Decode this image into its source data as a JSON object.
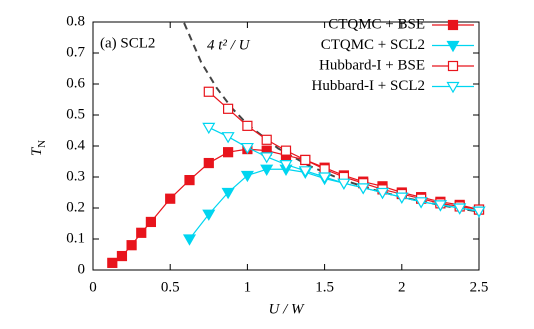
{
  "chart_data": {
    "type": "line",
    "panel_label": "(a) SCL2",
    "x_label": "U / W",
    "y_label": {
      "main": "T",
      "sub": "N"
    },
    "xlim": [
      0,
      2.5
    ],
    "ylim": [
      0,
      0.8
    ],
    "xticks": [
      0,
      0.5,
      1,
      1.5,
      2,
      2.5
    ],
    "yticks": [
      0,
      0.1,
      0.2,
      0.3,
      0.4,
      0.5,
      0.6,
      0.7,
      0.8
    ],
    "legend": "top-right",
    "series": [
      {
        "name": "CTQMC + BSE",
        "color": "#e8141c",
        "marker": "square-filled",
        "x": [
          0.125,
          0.1875,
          0.25,
          0.3125,
          0.375,
          0.5,
          0.625,
          0.75,
          0.875,
          1.0,
          1.125,
          1.25,
          1.375,
          1.5,
          1.625,
          1.75,
          1.875,
          2.0,
          2.125,
          2.25,
          2.375,
          2.5
        ],
        "values": [
          0.023,
          0.045,
          0.08,
          0.12,
          0.155,
          0.23,
          0.29,
          0.345,
          0.38,
          0.39,
          0.385,
          0.37,
          0.355,
          0.33,
          0.305,
          0.285,
          0.27,
          0.25,
          0.235,
          0.22,
          0.21,
          0.195
        ]
      },
      {
        "name": "CTQMC + SCL2",
        "color": "#00d5f0",
        "marker": "triangle-down-filled",
        "x": [
          0.625,
          0.75,
          0.875,
          1.0,
          1.125,
          1.25,
          1.375,
          1.5,
          1.625,
          1.75,
          1.875,
          2.0,
          2.125,
          2.25,
          2.375,
          2.5
        ],
        "values": [
          0.1,
          0.18,
          0.25,
          0.305,
          0.325,
          0.325,
          0.315,
          0.295,
          0.28,
          0.265,
          0.25,
          0.235,
          0.22,
          0.21,
          0.2,
          0.19
        ]
      },
      {
        "name": "Hubbard-I + BSE",
        "color": "#e8141c",
        "marker": "square-open",
        "x": [
          0.75,
          0.875,
          1.0,
          1.125,
          1.25,
          1.375,
          1.5,
          1.625,
          1.75,
          1.875,
          2.0,
          2.125,
          2.25,
          2.375,
          2.5
        ],
        "values": [
          0.575,
          0.52,
          0.465,
          0.42,
          0.385,
          0.355,
          0.325,
          0.3,
          0.28,
          0.26,
          0.245,
          0.23,
          0.215,
          0.205,
          0.195
        ]
      },
      {
        "name": "Hubbard-I + SCL2",
        "color": "#00d5f0",
        "marker": "triangle-down-open",
        "x": [
          0.75,
          0.875,
          1.0,
          1.125,
          1.25,
          1.375,
          1.5,
          1.625,
          1.75,
          1.875,
          2.0,
          2.125,
          2.25,
          2.375,
          2.5
        ],
        "values": [
          0.46,
          0.43,
          0.395,
          0.365,
          0.34,
          0.32,
          0.3,
          0.28,
          0.265,
          0.25,
          0.235,
          0.22,
          0.21,
          0.2,
          0.19
        ]
      }
    ],
    "curve": {
      "label": "4 t² / U",
      "color": "#444444",
      "dash": "dashed",
      "x": [
        0.59,
        0.7,
        0.8,
        0.9,
        1.0,
        1.2,
        1.4,
        1.6,
        1.8,
        2.0,
        2.25,
        2.5
      ],
      "values": [
        0.797,
        0.671,
        0.588,
        0.522,
        0.47,
        0.392,
        0.336,
        0.294,
        0.261,
        0.235,
        0.209,
        0.188
      ]
    }
  }
}
